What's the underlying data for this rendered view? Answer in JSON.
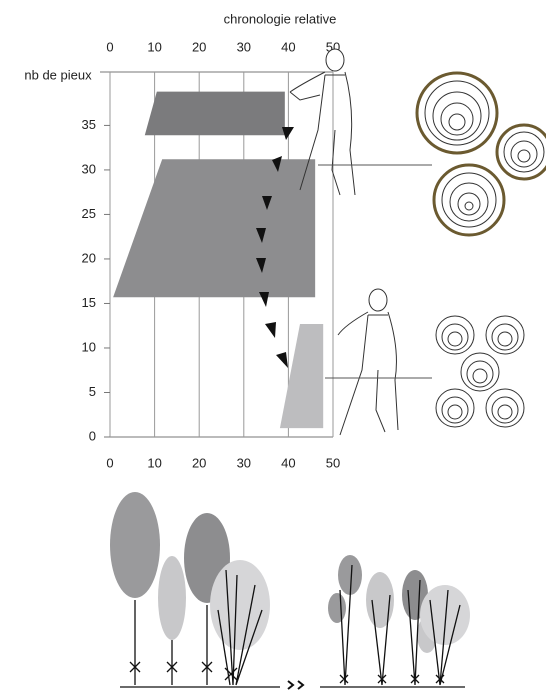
{
  "chart_data": {
    "type": "polygon",
    "x_label": "chronologie relative",
    "y_label": "nb de pieux",
    "xlim": [
      0,
      50
    ],
    "ylim": [
      0,
      41
    ],
    "xticks": [
      0,
      10,
      20,
      30,
      40,
      50
    ],
    "yticks": [
      0,
      5,
      10,
      15,
      20,
      25,
      30,
      35
    ],
    "grid": true,
    "polygons": [
      {
        "color": "#7b7b7d",
        "x": [
          10.5,
          39.2,
          39.2,
          7.8
        ],
        "y": [
          38.8,
          38.8,
          33.9,
          33.9
        ]
      },
      {
        "color": "#8d8d8f",
        "x": [
          11.7,
          46,
          46,
          0.7
        ],
        "y": [
          31.2,
          31.2,
          15.7,
          15.7
        ]
      },
      {
        "color": "#bdbdbf",
        "x": [
          42.6,
          47.8,
          47.8,
          38.1
        ],
        "y": [
          12.7,
          12.7,
          1.0,
          1.0
        ]
      }
    ]
  }
}
